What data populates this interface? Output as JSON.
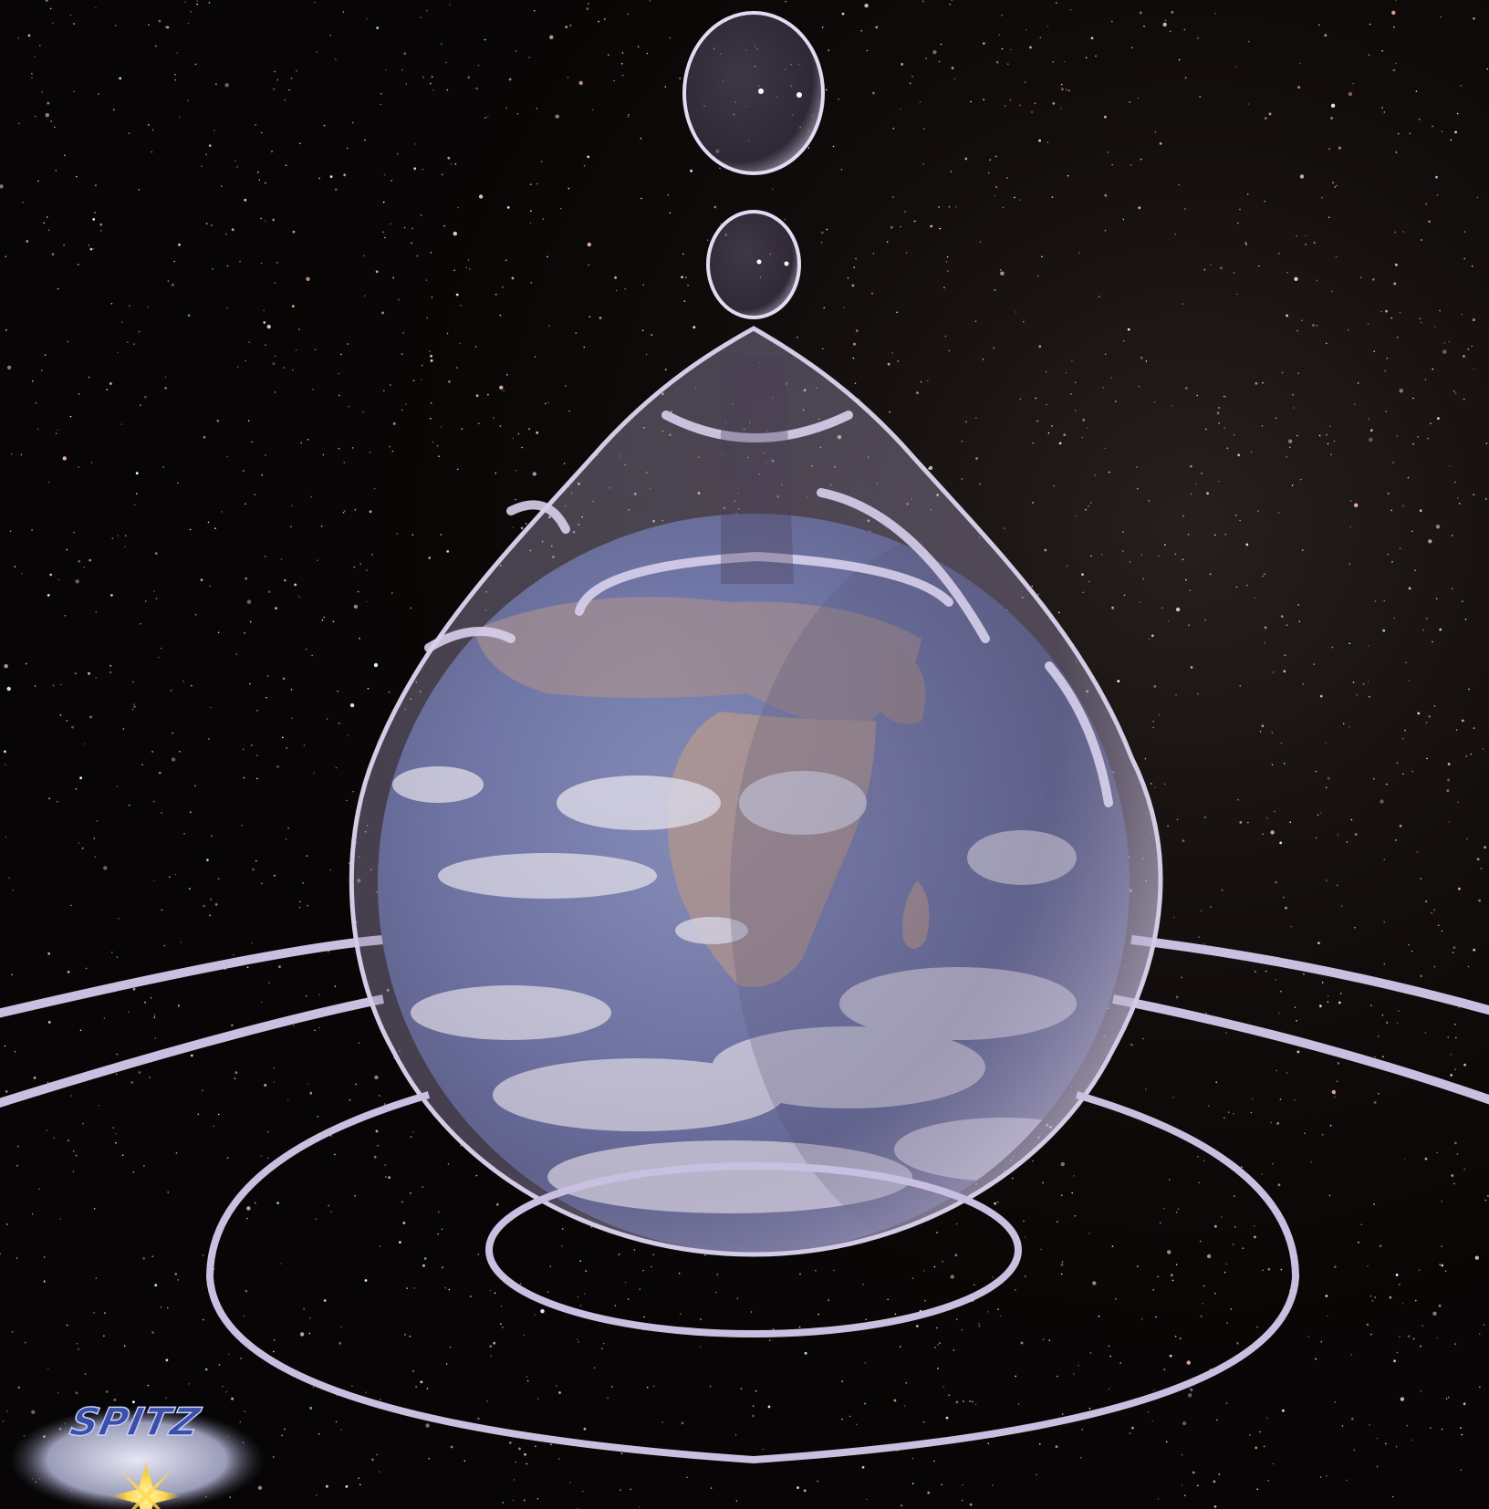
{
  "scene": {
    "background_color": "#070505",
    "ring_color": "#c9bfe0",
    "drop_tint": "#9a8fb0",
    "ocean_color": "#3a4f8a",
    "land_color": "#a88a78",
    "cloud_color": "#f2f3f8"
  },
  "logo": {
    "text": "SPITZ",
    "text_color": "#3a4fa8",
    "flare_color": "#ffd84a"
  }
}
